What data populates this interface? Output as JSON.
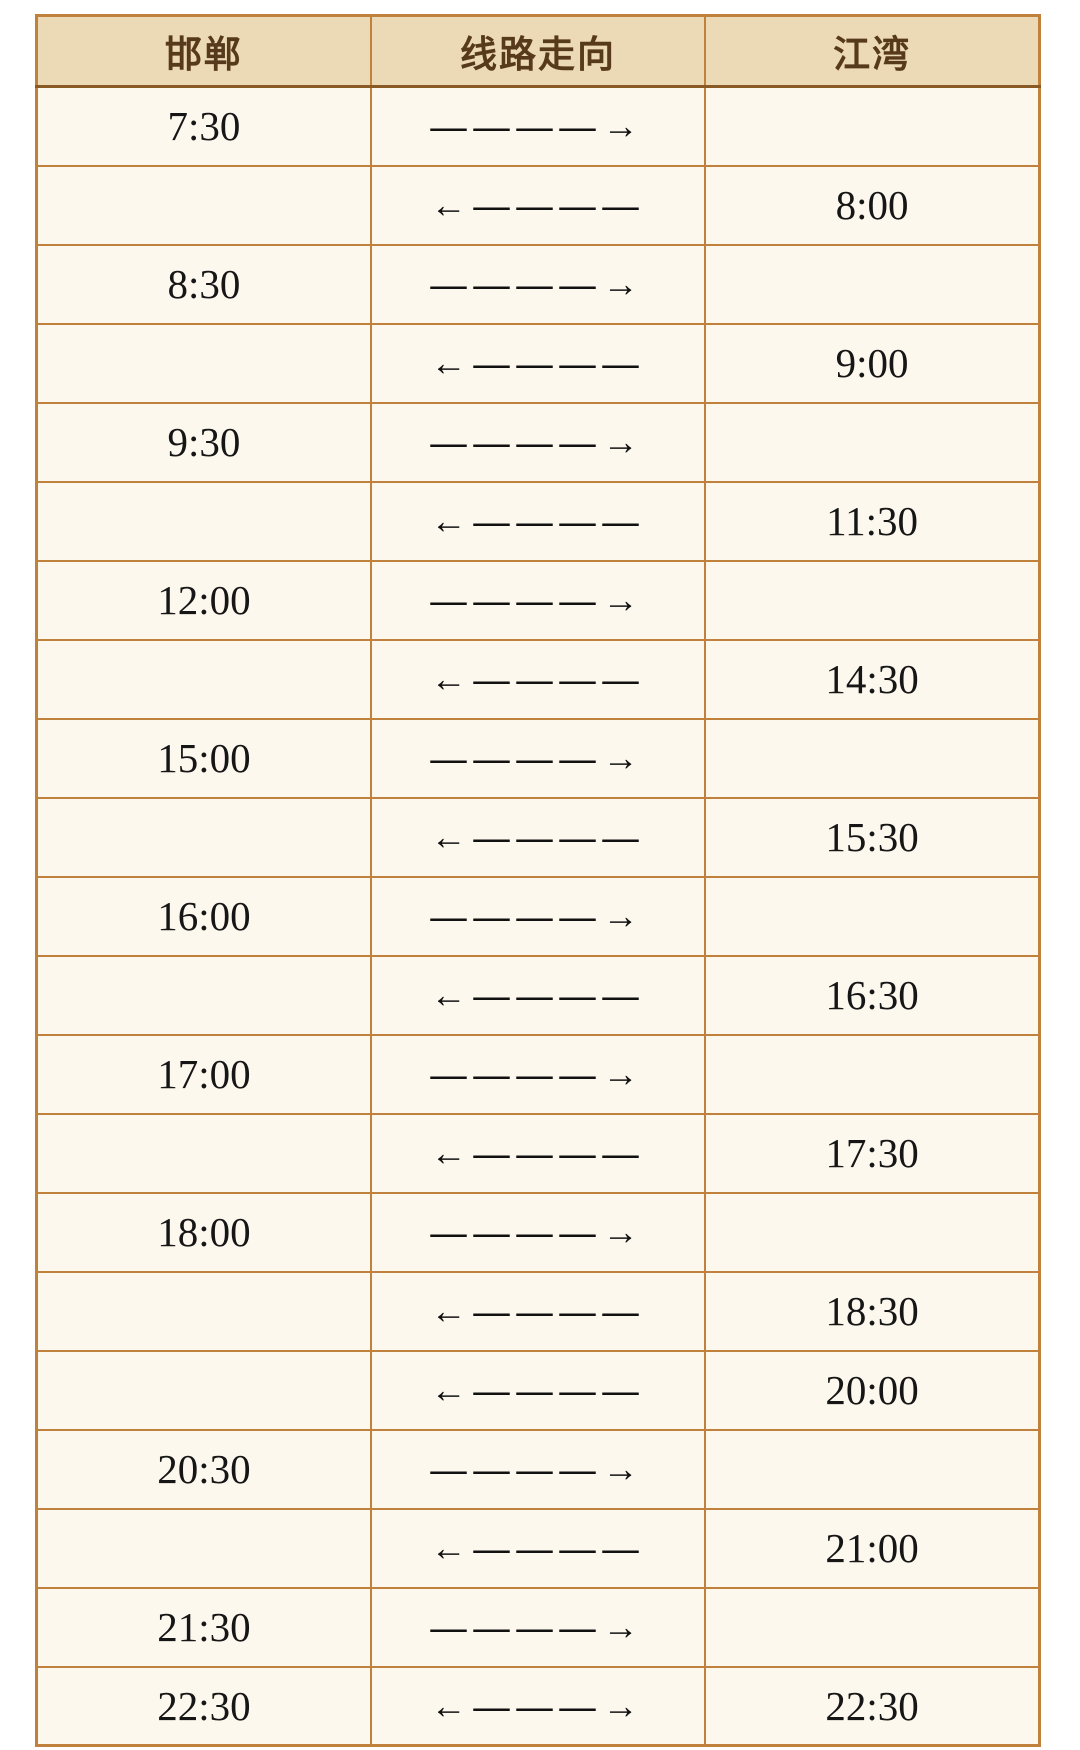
{
  "table": {
    "headers": {
      "handan": "邯郸",
      "route": "线路走向",
      "jiangwan": "江湾"
    },
    "rows": [
      {
        "handan": "7:30",
        "route": "————→",
        "direction": "right",
        "jiangwan": ""
      },
      {
        "handan": "",
        "route": "←————",
        "direction": "left",
        "jiangwan": "8:00"
      },
      {
        "handan": "8:30",
        "route": "————→",
        "direction": "right",
        "jiangwan": ""
      },
      {
        "handan": "",
        "route": "←————",
        "direction": "left",
        "jiangwan": "9:00"
      },
      {
        "handan": "9:30",
        "route": "————→",
        "direction": "right",
        "jiangwan": ""
      },
      {
        "handan": "",
        "route": "←————",
        "direction": "left",
        "jiangwan": "11:30"
      },
      {
        "handan": "12:00",
        "route": "————→",
        "direction": "right",
        "jiangwan": ""
      },
      {
        "handan": "",
        "route": "←————",
        "direction": "left",
        "jiangwan": "14:30"
      },
      {
        "handan": "15:00",
        "route": "————→",
        "direction": "right",
        "jiangwan": ""
      },
      {
        "handan": "",
        "route": "←————",
        "direction": "left",
        "jiangwan": "15:30"
      },
      {
        "handan": "16:00",
        "route": "————→",
        "direction": "right",
        "jiangwan": ""
      },
      {
        "handan": "",
        "route": "←————",
        "direction": "left",
        "jiangwan": "16:30"
      },
      {
        "handan": "17:00",
        "route": "————→",
        "direction": "right",
        "jiangwan": ""
      },
      {
        "handan": "",
        "route": "←————",
        "direction": "left",
        "jiangwan": "17:30"
      },
      {
        "handan": "18:00",
        "route": "————→",
        "direction": "right",
        "jiangwan": ""
      },
      {
        "handan": "",
        "route": "←————",
        "direction": "left",
        "jiangwan": "18:30"
      },
      {
        "handan": "",
        "route": "←————",
        "direction": "left",
        "jiangwan": "20:00"
      },
      {
        "handan": "20:30",
        "route": "————→",
        "direction": "right",
        "jiangwan": ""
      },
      {
        "handan": "",
        "route": "←————",
        "direction": "left",
        "jiangwan": "21:00"
      },
      {
        "handan": "21:30",
        "route": "————→",
        "direction": "right",
        "jiangwan": ""
      },
      {
        "handan": "22:30",
        "route": "←———→",
        "direction": "both",
        "jiangwan": "22:30"
      }
    ],
    "colors": {
      "border": "#c0813d",
      "header_background": "#ecd9b5",
      "header_text": "#573a1c",
      "header_divider": "#8a5a24",
      "cell_background": "#fdf8ee",
      "cell_text": "#161616"
    }
  }
}
